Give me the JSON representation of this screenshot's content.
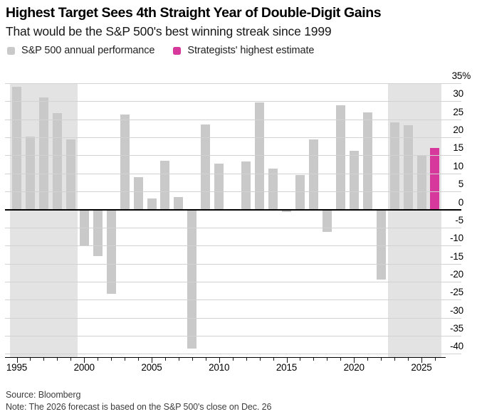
{
  "header": {
    "title": "Highest Target Sees 4th Straight Year of Double-Digit Gains",
    "subtitle": "That would be the S&P 500's best winning streak since 1999"
  },
  "legend": [
    {
      "label": "S&P 500 annual performance",
      "color": "#c9c9c9",
      "swatch": "gray-square"
    },
    {
      "label": "Strategists' highest estimate",
      "color": "#d6399b",
      "swatch": "pink-square"
    }
  ],
  "chart_data": {
    "type": "bar",
    "title": "Highest Target Sees 4th Straight Year of Double-Digit Gains",
    "subtitle": "That would be the S&P 500's best winning streak since 1999",
    "xlabel": "",
    "ylabel": "%",
    "ylim": [
      -40,
      35
    ],
    "ytick_step": 5,
    "ytick_labels": [
      "35%",
      "30",
      "25",
      "20",
      "15",
      "10",
      "5",
      "0",
      "-5",
      "-10",
      "-15",
      "-20",
      "-25",
      "-30",
      "-35",
      "-40"
    ],
    "grid": true,
    "legend_position": "top-left",
    "yaxis_side": "right",
    "categories": [
      1995,
      1996,
      1997,
      1998,
      1999,
      2000,
      2001,
      2002,
      2003,
      2004,
      2005,
      2006,
      2007,
      2008,
      2009,
      2010,
      2011,
      2012,
      2013,
      2014,
      2015,
      2016,
      2017,
      2018,
      2019,
      2020,
      2021,
      2022,
      2023,
      2024,
      2025,
      2026
    ],
    "series": [
      {
        "name": "S&P 500 annual performance",
        "color": "#c9c9c9",
        "values": [
          34.1,
          20.3,
          31.0,
          26.7,
          19.5,
          -10.1,
          -13.0,
          -23.4,
          26.4,
          9.0,
          3.0,
          13.6,
          3.5,
          -38.5,
          23.5,
          12.8,
          0.0,
          13.4,
          29.6,
          11.4,
          -0.7,
          9.5,
          19.4,
          -6.2,
          28.9,
          16.3,
          26.9,
          -19.4,
          24.2,
          23.3,
          15.0,
          null
        ]
      },
      {
        "name": "Strategists' highest estimate",
        "color": "#d6399b",
        "values": [
          null,
          null,
          null,
          null,
          null,
          null,
          null,
          null,
          null,
          null,
          null,
          null,
          null,
          null,
          null,
          null,
          null,
          null,
          null,
          null,
          null,
          null,
          null,
          null,
          null,
          null,
          null,
          null,
          null,
          null,
          null,
          17.0
        ]
      }
    ],
    "x_labeled_ticks": [
      1995,
      2000,
      2005,
      2010,
      2015,
      2020,
      2025
    ],
    "xtick_labels": [
      "1995",
      "2000",
      "2005",
      "2010",
      "2015",
      "2020",
      "2025"
    ],
    "highlight_bands": [
      [
        1995,
        1999
      ],
      [
        2023,
        2026
      ]
    ],
    "colors": {
      "bar": "#c9c9c9",
      "estimate": "#d6399b",
      "band": "#e3e3e3",
      "grid": "#d2d2d2",
      "zero_line": "#000000",
      "axis": "#000000"
    }
  },
  "footer": {
    "source": "Source: Bloomberg",
    "note": "Note: The 2026 forecast is based on the S&P 500's close on Dec. 26"
  }
}
